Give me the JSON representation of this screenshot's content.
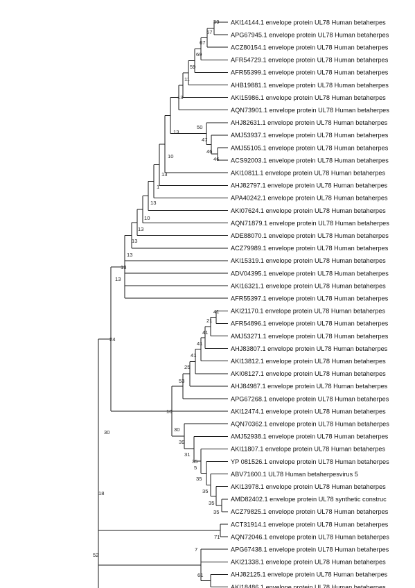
{
  "taxon_suffix": " envelope protein UL78 Human betaherpes",
  "leaves": [
    {
      "acc": "AKI14144.1"
    },
    {
      "acc": "APG67945.1"
    },
    {
      "acc": "ACZ80154.1"
    },
    {
      "acc": "AFR54729.1"
    },
    {
      "acc": "AFR55399.1"
    },
    {
      "acc": "AHB19881.1"
    },
    {
      "acc": "AKI15986.1"
    },
    {
      "acc": "AQN73901.1"
    },
    {
      "acc": "AHJ82631.1"
    },
    {
      "acc": "AMJ53937.1"
    },
    {
      "acc": "AMJ55105.1"
    },
    {
      "acc": "ACS92003.1"
    },
    {
      "acc": "AKI10811.1"
    },
    {
      "acc": "AHJ82797.1"
    },
    {
      "acc": "APA40242.1"
    },
    {
      "acc": "AKI07624.1"
    },
    {
      "acc": "AQN71879.1"
    },
    {
      "acc": "ADE88070.1"
    },
    {
      "acc": "ACZ79989.1"
    },
    {
      "acc": "AKI15319.1"
    },
    {
      "acc": "ADV04395.1"
    },
    {
      "acc": "AKI16321.1"
    },
    {
      "acc": "AFR55397.1"
    },
    {
      "acc": "AKI21170.1"
    },
    {
      "acc": "AFR54896.1"
    },
    {
      "acc": "AMJ53271.1"
    },
    {
      "acc": "AHJ83807.1"
    },
    {
      "acc": "AKI13812.1"
    },
    {
      "acc": "AKI08127.1"
    },
    {
      "acc": "AHJ84987.1"
    },
    {
      "acc": "APG67268.1"
    },
    {
      "acc": "AKI12474.1"
    },
    {
      "acc": "AQN70362.1"
    },
    {
      "acc": "AMJ52938.1"
    },
    {
      "acc": "AKI11807.1"
    },
    {
      "acc": "YP 081526.1"
    },
    {
      "acc": "ABV71600.1",
      "desc": " UL78 Human betaherpesvirus 5"
    },
    {
      "acc": "AKI13978.1"
    },
    {
      "acc": "AMD82402.1",
      "desc": " envelope protein UL78 synthetic construc"
    },
    {
      "acc": "ACZ79825.1"
    },
    {
      "acc": "ACT31914.1"
    },
    {
      "acc": "AQN72046.1"
    },
    {
      "acc": "APG67438.1"
    },
    {
      "acc": "AKI21338.1"
    },
    {
      "acc": "AHJ82125.1"
    },
    {
      "acc": "AKI18486.1"
    }
  ],
  "bootstrap": [
    "59",
    "67",
    "67",
    "69",
    "59",
    "11",
    "13",
    "50",
    "47",
    "46",
    "46",
    "13",
    "10",
    "13",
    "1",
    "13",
    "10",
    "13",
    "13",
    "13",
    "13",
    "13",
    "41",
    "21",
    "41",
    "41",
    "41",
    "25",
    "53",
    "10",
    "30",
    "39",
    "31",
    "35",
    "5",
    "35",
    "35",
    "35",
    "35",
    "71",
    "7",
    "61",
    "30",
    "24",
    "18",
    "52"
  ]
}
